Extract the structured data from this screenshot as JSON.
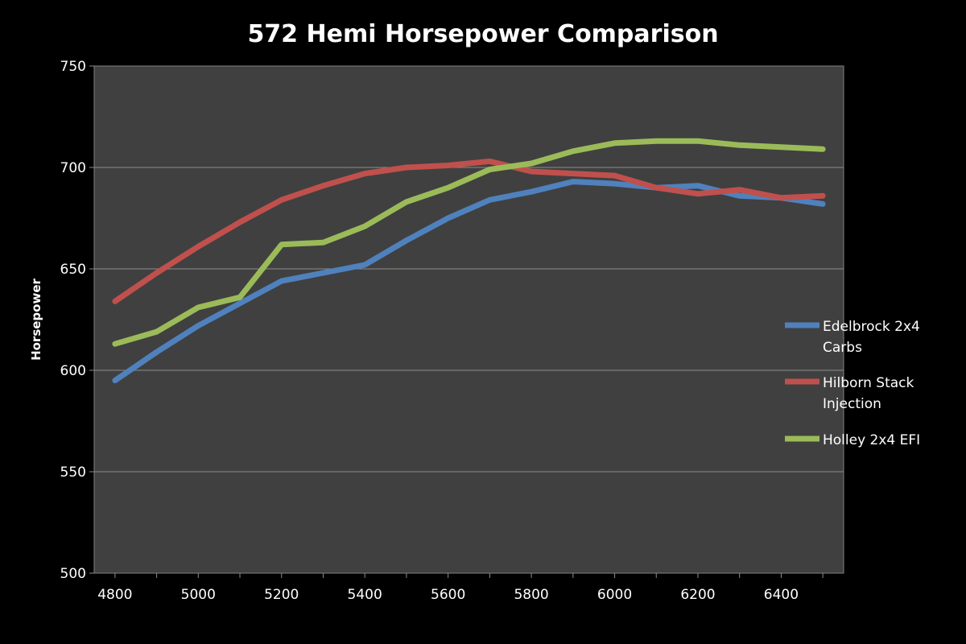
{
  "chart_data": {
    "type": "line",
    "title": "572 Hemi Horsepower Comparison",
    "xlabel": "",
    "ylabel": "Horsepower",
    "ylim": [
      500,
      750
    ],
    "yticks": [
      500,
      550,
      600,
      650,
      700,
      750
    ],
    "xtick_labels": [
      "4800",
      "5000",
      "5200",
      "5400",
      "5600",
      "5800",
      "6000",
      "6200",
      "6400"
    ],
    "x": [
      4800,
      4900,
      5000,
      5100,
      5200,
      5300,
      5400,
      5500,
      5600,
      5700,
      5800,
      5900,
      6000,
      6100,
      6200,
      6300,
      6400,
      6500
    ],
    "grid": true,
    "legend_position": "right",
    "background": "#404040",
    "series": [
      {
        "name": "Edelbrock 2x4 Carbs",
        "name_lines": [
          "Edelbrock 2x4",
          "Carbs"
        ],
        "color": "#4f81bd",
        "values": [
          595,
          609,
          622,
          633,
          644,
          648,
          652,
          664,
          675,
          684,
          688,
          693,
          692,
          690,
          691,
          686,
          685,
          682
        ]
      },
      {
        "name": "Hilborn Stack Injection",
        "name_lines": [
          "Hilborn Stack",
          "Injection"
        ],
        "color": "#c0504d",
        "values": [
          634,
          648,
          661,
          673,
          684,
          691,
          697,
          700,
          701,
          703,
          698,
          697,
          696,
          690,
          687,
          689,
          685,
          686
        ]
      },
      {
        "name": "Holley 2x4 EFI",
        "name_lines": [
          "Holley 2x4 EFI"
        ],
        "color": "#9bbb59",
        "values": [
          613,
          619,
          631,
          636,
          662,
          663,
          671,
          683,
          690,
          699,
          702,
          708,
          712,
          713,
          713,
          711,
          710,
          709
        ]
      }
    ]
  }
}
